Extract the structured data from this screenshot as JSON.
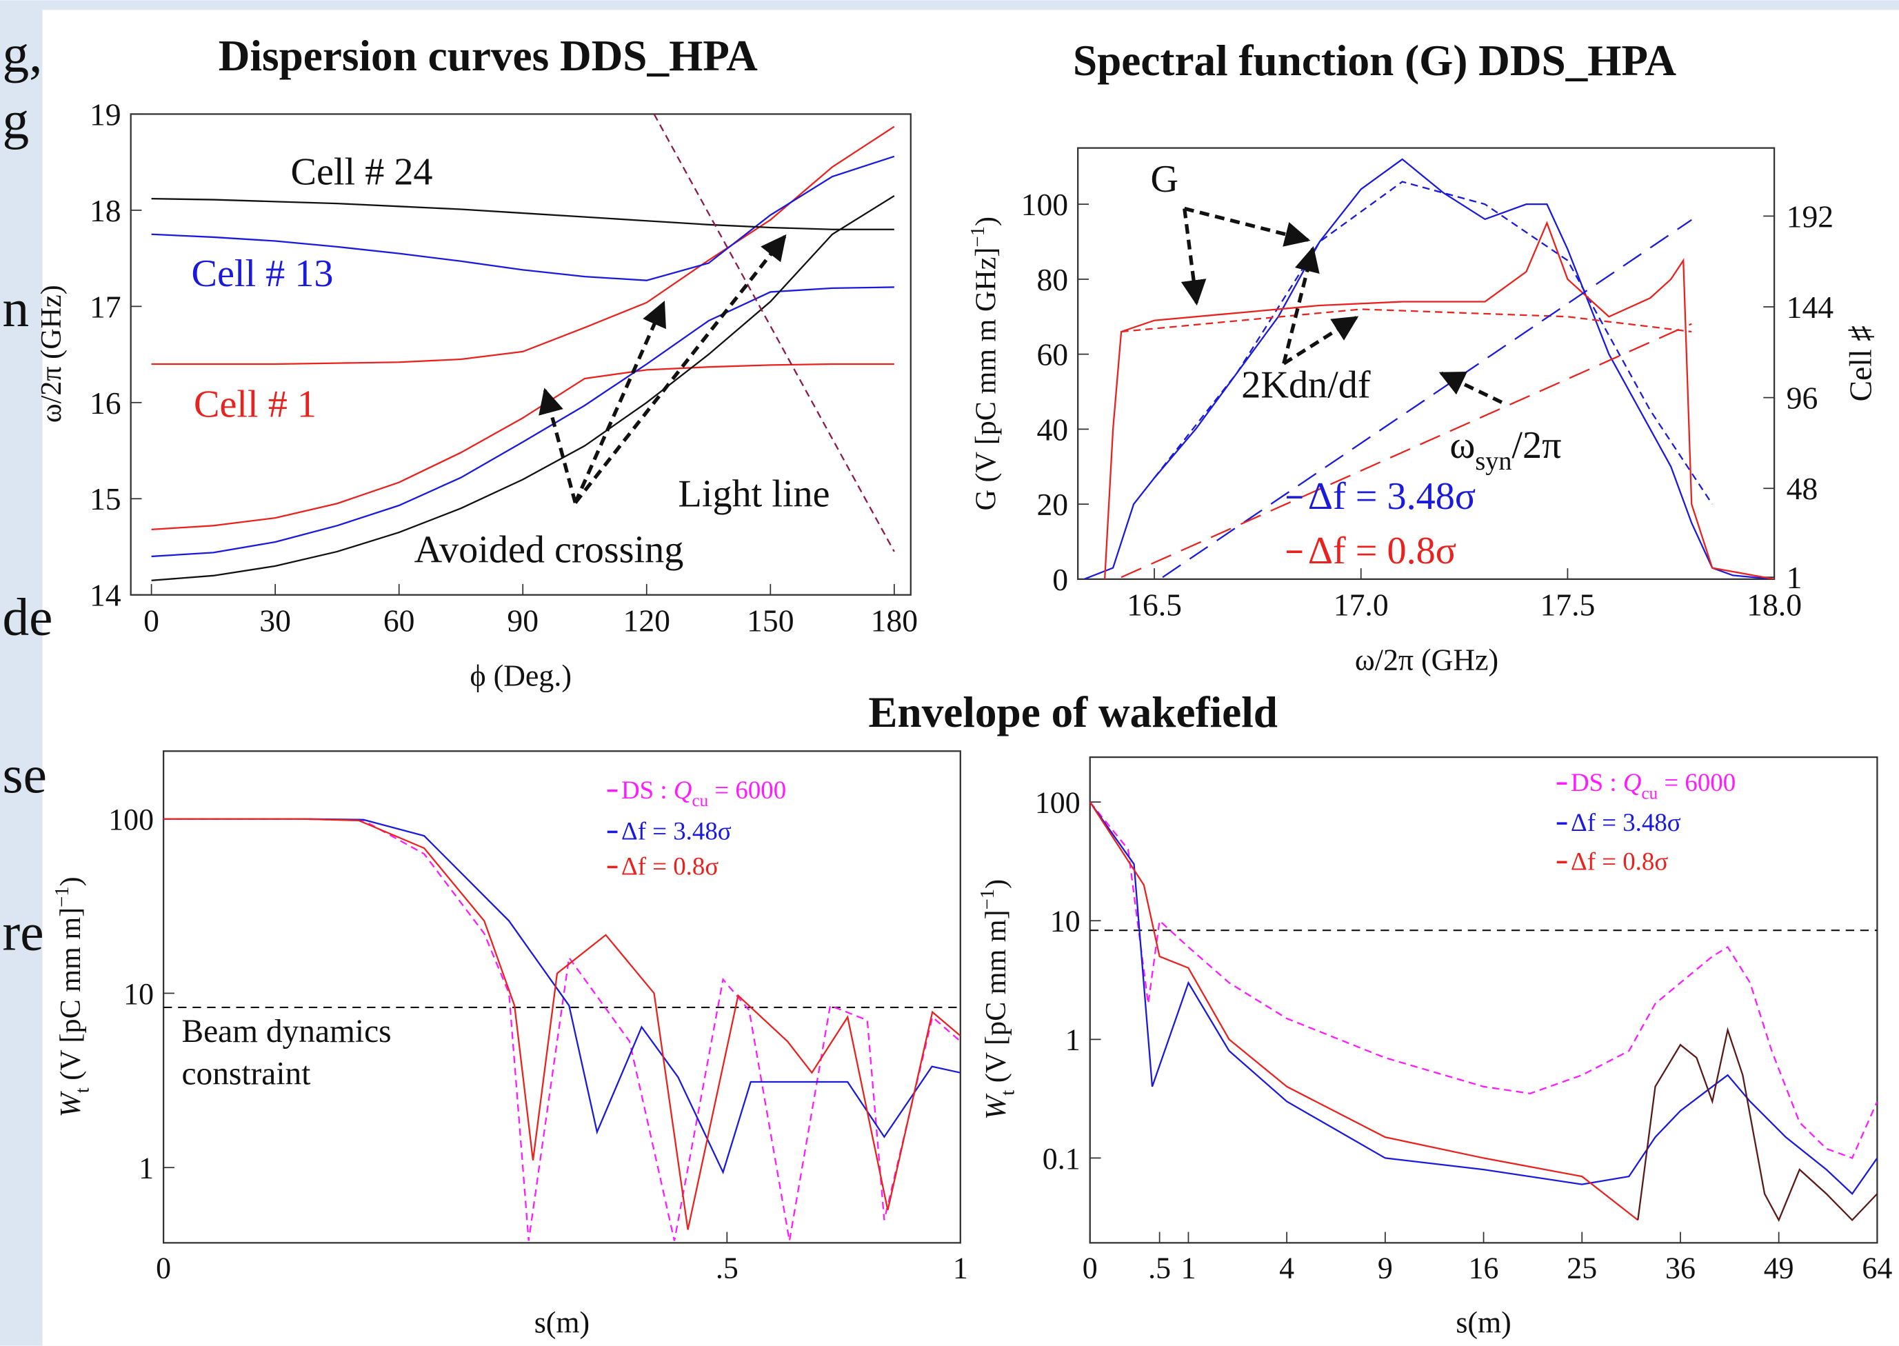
{
  "slide_fragments": [
    "g,",
    "g",
    "n",
    "de",
    "se",
    "re"
  ],
  "bottom_title": "Envelope of wakefield",
  "chart_data": [
    {
      "type": "line",
      "title": "Dispersion curves DDS_HPA",
      "xlabel": "ϕ (Deg.)",
      "ylabel": "ω/2π (GHz)",
      "xlim": [
        -5,
        184
      ],
      "ylim": [
        14,
        19
      ],
      "xticks": [
        0,
        30,
        60,
        90,
        120,
        150,
        180
      ],
      "yticks": [
        14,
        15,
        16,
        17,
        18,
        19
      ],
      "x": [
        0,
        15,
        30,
        45,
        60,
        75,
        90,
        105,
        120,
        135,
        150,
        165,
        180
      ],
      "series": [
        {
          "color": "#e8231f",
          "dash": "solid",
          "values": [
            14.68,
            14.72,
            14.8,
            14.95,
            15.17,
            15.48,
            15.84,
            16.25,
            16.34,
            16.37,
            16.39,
            16.4,
            16.4
          ]
        },
        {
          "color": "#e8231f",
          "dash": "solid",
          "values": [
            16.4,
            16.4,
            16.4,
            16.41,
            16.42,
            16.45,
            16.53,
            16.78,
            17.04,
            17.48,
            17.9,
            18.45,
            18.87
          ]
        },
        {
          "color": "#1a1adb",
          "dash": "solid",
          "values": [
            14.4,
            14.44,
            14.55,
            14.72,
            14.93,
            15.22,
            15.59,
            15.97,
            16.4,
            16.85,
            17.15,
            17.19,
            17.2
          ]
        },
        {
          "color": "#1a1adb",
          "dash": "solid",
          "values": [
            17.75,
            17.72,
            17.68,
            17.62,
            17.55,
            17.47,
            17.38,
            17.31,
            17.27,
            17.45,
            17.95,
            18.35,
            18.56
          ]
        },
        {
          "color": "#111111",
          "dash": "solid",
          "values": [
            14.15,
            14.2,
            14.3,
            14.45,
            14.65,
            14.9,
            15.2,
            15.55,
            16.0,
            16.5,
            17.05,
            17.75,
            18.15
          ]
        },
        {
          "color": "#111111",
          "dash": "solid",
          "values": [
            18.12,
            18.11,
            18.09,
            18.07,
            18.04,
            18.01,
            17.97,
            17.93,
            17.89,
            17.85,
            17.82,
            17.8,
            17.8
          ]
        },
        {
          "color": "#8b1a4a",
          "dash": "dashed",
          "x": [
            121.8,
            180
          ],
          "values": [
            19,
            14.45
          ]
        }
      ],
      "annotations": [
        {
          "text": "Cell # 24",
          "color": "#111111"
        },
        {
          "text": "Cell # 13",
          "color": "#1a1adb"
        },
        {
          "text": "Cell # 1",
          "color": "#e8231f"
        },
        {
          "text": "Light line",
          "color": "#111111"
        },
        {
          "text": "Avoided crossing",
          "color": "#111111"
        }
      ]
    },
    {
      "type": "line",
      "title": "Spectral function (G) DDS_HPA",
      "xlabel": "ω/2π (GHz)",
      "ylabel": [
        {
          "text": "G (V [pC mm m GHz]"
        },
        {
          "text": "−1",
          "style": "sup"
        },
        {
          "text": ")"
        }
      ],
      "y2label": "Cell ♯",
      "xlim": [
        16.315,
        18
      ],
      "ylim": [
        0,
        115
      ],
      "y2lim": [
        0,
        228
      ],
      "xticks": [
        16.5,
        {
          "value": 17,
          "label": "17.0"
        },
        17.5,
        {
          "value": 18,
          "label": "18.0"
        }
      ],
      "yticks": [
        0,
        20,
        40,
        60,
        80,
        100
      ],
      "y2ticks": [
        1,
        48,
        96,
        144,
        192
      ],
      "series": [
        {
          "name": "Δf = 3.48σ",
          "color": "#1a1adb",
          "dash": "solid",
          "x": [
            16.33,
            16.4,
            16.45,
            16.5,
            16.6,
            16.7,
            16.8,
            16.9,
            17.0,
            17.1,
            17.2,
            17.3,
            17.4,
            17.45,
            17.5,
            17.6,
            17.7,
            17.75,
            17.8,
            17.85,
            17.9,
            18.0
          ],
          "values": [
            0,
            3,
            20,
            27,
            40,
            55,
            70,
            90,
            104,
            112,
            103,
            96,
            100,
            100,
            88,
            60,
            40,
            30,
            15,
            3,
            1,
            0
          ]
        },
        {
          "color": "#1a1adb",
          "dash": "dashed",
          "x": [
            16.5,
            16.7,
            16.9,
            17.1,
            17.3,
            17.5,
            17.7,
            17.85
          ],
          "values": [
            27,
            55,
            90,
            106,
            100,
            85,
            45,
            20
          ]
        },
        {
          "name": "Δf = 0.8σ",
          "color": "#e8231f",
          "dash": "solid",
          "x": [
            16.38,
            16.4,
            16.42,
            16.5,
            16.7,
            16.9,
            17.1,
            17.3,
            17.4,
            17.45,
            17.5,
            17.6,
            17.7,
            17.75,
            17.78,
            17.8,
            17.85,
            18.0
          ],
          "values": [
            0,
            40,
            66,
            69,
            71,
            73,
            74,
            74,
            82,
            95,
            80,
            70,
            75,
            80,
            85,
            20,
            3,
            0
          ]
        },
        {
          "color": "#e8231f",
          "dash": "dashed",
          "x": [
            16.42,
            17.0,
            17.5,
            17.8
          ],
          "values": [
            66,
            72,
            70,
            66
          ]
        },
        {
          "color": "#1a1adb",
          "dash": "longdash",
          "axis": "y2",
          "x": [
            16.52,
            17.8
          ],
          "values": [
            1,
            190
          ]
        },
        {
          "color": "#e8231f",
          "dash": "longdash",
          "axis": "y2",
          "x": [
            16.42,
            17.8
          ],
          "values": [
            1,
            135
          ]
        }
      ],
      "annotations": [
        {
          "text": "G",
          "color": "#111111"
        },
        {
          "text": "2Kdn/df",
          "color": "#111111"
        },
        {
          "text": [
            {
              "text": "ω"
            },
            {
              "text": "syn",
              "style": "sub"
            },
            {
              "text": "/2π"
            }
          ],
          "color": "#111111"
        }
      ]
    },
    {
      "type": "line",
      "xlabel": "s(m)",
      "ylabel": [
        {
          "text": "W",
          "style": "italic"
        },
        {
          "text": "t",
          "style": "sub"
        },
        {
          "text": " (V [pC mm m]"
        },
        {
          "text": "−1",
          "style": "sup"
        },
        {
          "text": ")"
        }
      ],
      "xscale": "sqrt",
      "yscale": "log",
      "xlim": [
        0,
        1
      ],
      "ylim": [
        0.37,
        245
      ],
      "xticks": [
        0,
        {
          "value": 0.5,
          "label": ".5"
        },
        1
      ],
      "yticks": [
        1,
        10,
        100
      ],
      "reference_line": {
        "value": 8.3,
        "color": "#111111"
      },
      "series": [
        {
          "name": [
            {
              "text": "DS : "
            },
            {
              "text": "Q",
              "style": "italic"
            },
            {
              "text": "cu",
              "style": "sub"
            },
            {
              "text": " = 6000"
            }
          ],
          "color": "#ff1aff",
          "dash": "dashed",
          "x": [
            0,
            0.03,
            0.063,
            0.107,
            0.162,
            0.188,
            0.21,
            0.259,
            0.342,
            0.411,
            0.493,
            0.54,
            0.617,
            0.7,
            0.78,
            0.818,
            0.931,
            1
          ],
          "values": [
            100,
            100,
            98,
            63,
            22,
            10,
            0.38,
            16,
            5.3,
            0.38,
            12,
            8,
            0.38,
            8.5,
            7,
            0.5,
            7.3,
            5.3
          ]
        },
        {
          "name": "Δf = 3.48σ",
          "color": "#1a1adb",
          "dash": "solid",
          "x": [
            0,
            0.03,
            0.063,
            0.107,
            0.188,
            0.259,
            0.296,
            0.36,
            0.417,
            0.493,
            0.543,
            0.737,
            0.818,
            0.93,
            1
          ],
          "values": [
            100,
            100,
            99,
            80,
            26,
            8.5,
            1.6,
            6.4,
            3.3,
            0.94,
            3.1,
            3.1,
            1.5,
            3.8,
            3.5
          ]
        },
        {
          "name": "Δf = 0.8σ",
          "color": "#e8231f",
          "dash": "solid",
          "x": [
            0,
            0.03,
            0.06,
            0.107,
            0.162,
            0.194,
            0.215,
            0.244,
            0.308,
            0.379,
            0.433,
            0.52,
            0.613,
            0.662,
            0.737,
            0.826,
            0.931,
            1
          ],
          "values": [
            100,
            100,
            98,
            68,
            26,
            8.5,
            1.1,
            13,
            21.6,
            10,
            0.44,
            9.7,
            5.3,
            3.5,
            7.3,
            0.57,
            7.8,
            5.7
          ]
        }
      ],
      "annotations": [
        {
          "text": "Beam dynamics",
          "color": "#111111"
        },
        {
          "text": "constraint",
          "color": "#111111"
        }
      ]
    },
    {
      "type": "line",
      "xlabel": "s(m)",
      "ylabel": [
        {
          "text": "W",
          "style": "italic"
        },
        {
          "text": "t",
          "style": "sub"
        },
        {
          "text": " (V [pC mm m]"
        },
        {
          "text": "−1",
          "style": "sup"
        },
        {
          "text": ")"
        }
      ],
      "xscale": "sqrt",
      "yscale": "log",
      "xlim": [
        0,
        64
      ],
      "ylim": [
        0.0193,
        239
      ],
      "xticks": [
        0,
        {
          "value": 0.5,
          "label": ".5"
        },
        1,
        4,
        9,
        16,
        25,
        36,
        49,
        64
      ],
      "yticks": [
        0.1,
        1,
        10,
        100
      ],
      "reference_line": {
        "value": 8.3,
        "color": "#111111"
      },
      "series": [
        {
          "name": [
            {
              "text": "DS : "
            },
            {
              "text": "Q",
              "style": "italic"
            },
            {
              "text": "cu",
              "style": "sub"
            },
            {
              "text": " = 6000"
            }
          ],
          "color": "#ff1aff",
          "dash": "dashed",
          "x": [
            0,
            0.15,
            0.35,
            0.5,
            1,
            2,
            4,
            9,
            16,
            20,
            25,
            30,
            33,
            36,
            40,
            42,
            45,
            48,
            52,
            56,
            60,
            64
          ],
          "values": [
            100,
            40,
            2,
            10,
            6,
            3,
            1.5,
            0.7,
            0.4,
            0.35,
            0.5,
            0.8,
            2,
            3,
            5,
            6,
            3,
            0.8,
            0.2,
            0.12,
            0.1,
            0.3
          ]
        },
        {
          "name": "Δf = 3.48σ",
          "color": "#1a1adb",
          "dash": "solid",
          "x": [
            0,
            0.2,
            0.4,
            1,
            2,
            4,
            9,
            16,
            25,
            30,
            33,
            36,
            40,
            42,
            45,
            50,
            56,
            60,
            64
          ],
          "values": [
            100,
            30,
            0.4,
            3,
            0.8,
            0.3,
            0.1,
            0.08,
            0.06,
            0.07,
            0.15,
            0.25,
            0.4,
            0.5,
            0.3,
            0.15,
            0.08,
            0.05,
            0.1
          ]
        },
        {
          "name": "Δf = 0.8σ",
          "color": "#e8231f",
          "dash": "solid",
          "x": [
            0,
            0.3,
            0.5,
            1,
            2,
            4,
            9,
            16,
            25,
            31
          ],
          "values": [
            100,
            20,
            5,
            4,
            1,
            0.4,
            0.15,
            0.1,
            0.07,
            0.03
          ]
        },
        {
          "color": "#5a1a1a",
          "dash": "solid",
          "x": [
            31,
            33,
            36,
            38,
            40,
            42,
            44,
            47,
            49,
            52,
            56,
            60,
            64
          ],
          "values": [
            0.03,
            0.4,
            0.9,
            0.7,
            0.3,
            1.2,
            0.5,
            0.05,
            0.03,
            0.08,
            0.05,
            0.03,
            0.05
          ]
        }
      ]
    }
  ]
}
